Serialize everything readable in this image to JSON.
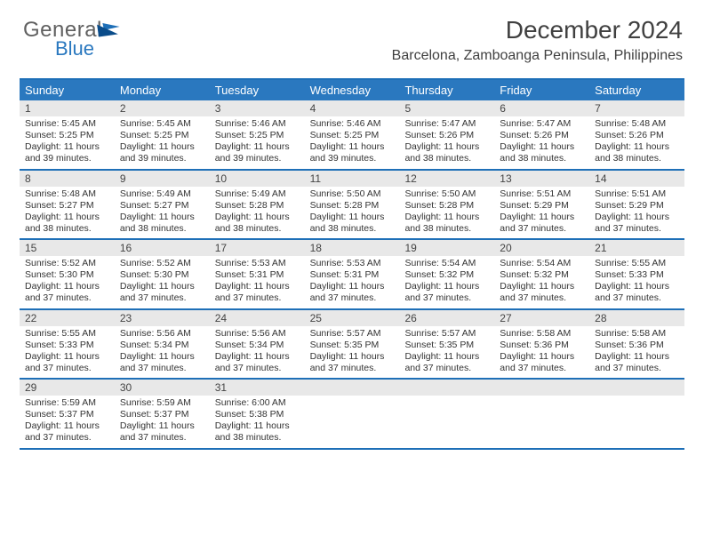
{
  "logo": {
    "text1": "General",
    "text2": "Blue"
  },
  "title": "December 2024",
  "subtitle": "Barcelona, Zamboanga Peninsula, Philippines",
  "colors": {
    "header_bg": "#2a78bf",
    "border": "#1e6fb7",
    "daynum_bg": "#e8e8e8",
    "text": "#333333"
  },
  "day_names": [
    "Sunday",
    "Monday",
    "Tuesday",
    "Wednesday",
    "Thursday",
    "Friday",
    "Saturday"
  ],
  "weeks": [
    [
      {
        "n": "1",
        "sr": "Sunrise: 5:45 AM",
        "ss": "Sunset: 5:25 PM",
        "dl": "Daylight: 11 hours and 39 minutes."
      },
      {
        "n": "2",
        "sr": "Sunrise: 5:45 AM",
        "ss": "Sunset: 5:25 PM",
        "dl": "Daylight: 11 hours and 39 minutes."
      },
      {
        "n": "3",
        "sr": "Sunrise: 5:46 AM",
        "ss": "Sunset: 5:25 PM",
        "dl": "Daylight: 11 hours and 39 minutes."
      },
      {
        "n": "4",
        "sr": "Sunrise: 5:46 AM",
        "ss": "Sunset: 5:25 PM",
        "dl": "Daylight: 11 hours and 39 minutes."
      },
      {
        "n": "5",
        "sr": "Sunrise: 5:47 AM",
        "ss": "Sunset: 5:26 PM",
        "dl": "Daylight: 11 hours and 38 minutes."
      },
      {
        "n": "6",
        "sr": "Sunrise: 5:47 AM",
        "ss": "Sunset: 5:26 PM",
        "dl": "Daylight: 11 hours and 38 minutes."
      },
      {
        "n": "7",
        "sr": "Sunrise: 5:48 AM",
        "ss": "Sunset: 5:26 PM",
        "dl": "Daylight: 11 hours and 38 minutes."
      }
    ],
    [
      {
        "n": "8",
        "sr": "Sunrise: 5:48 AM",
        "ss": "Sunset: 5:27 PM",
        "dl": "Daylight: 11 hours and 38 minutes."
      },
      {
        "n": "9",
        "sr": "Sunrise: 5:49 AM",
        "ss": "Sunset: 5:27 PM",
        "dl": "Daylight: 11 hours and 38 minutes."
      },
      {
        "n": "10",
        "sr": "Sunrise: 5:49 AM",
        "ss": "Sunset: 5:28 PM",
        "dl": "Daylight: 11 hours and 38 minutes."
      },
      {
        "n": "11",
        "sr": "Sunrise: 5:50 AM",
        "ss": "Sunset: 5:28 PM",
        "dl": "Daylight: 11 hours and 38 minutes."
      },
      {
        "n": "12",
        "sr": "Sunrise: 5:50 AM",
        "ss": "Sunset: 5:28 PM",
        "dl": "Daylight: 11 hours and 38 minutes."
      },
      {
        "n": "13",
        "sr": "Sunrise: 5:51 AM",
        "ss": "Sunset: 5:29 PM",
        "dl": "Daylight: 11 hours and 37 minutes."
      },
      {
        "n": "14",
        "sr": "Sunrise: 5:51 AM",
        "ss": "Sunset: 5:29 PM",
        "dl": "Daylight: 11 hours and 37 minutes."
      }
    ],
    [
      {
        "n": "15",
        "sr": "Sunrise: 5:52 AM",
        "ss": "Sunset: 5:30 PM",
        "dl": "Daylight: 11 hours and 37 minutes."
      },
      {
        "n": "16",
        "sr": "Sunrise: 5:52 AM",
        "ss": "Sunset: 5:30 PM",
        "dl": "Daylight: 11 hours and 37 minutes."
      },
      {
        "n": "17",
        "sr": "Sunrise: 5:53 AM",
        "ss": "Sunset: 5:31 PM",
        "dl": "Daylight: 11 hours and 37 minutes."
      },
      {
        "n": "18",
        "sr": "Sunrise: 5:53 AM",
        "ss": "Sunset: 5:31 PM",
        "dl": "Daylight: 11 hours and 37 minutes."
      },
      {
        "n": "19",
        "sr": "Sunrise: 5:54 AM",
        "ss": "Sunset: 5:32 PM",
        "dl": "Daylight: 11 hours and 37 minutes."
      },
      {
        "n": "20",
        "sr": "Sunrise: 5:54 AM",
        "ss": "Sunset: 5:32 PM",
        "dl": "Daylight: 11 hours and 37 minutes."
      },
      {
        "n": "21",
        "sr": "Sunrise: 5:55 AM",
        "ss": "Sunset: 5:33 PM",
        "dl": "Daylight: 11 hours and 37 minutes."
      }
    ],
    [
      {
        "n": "22",
        "sr": "Sunrise: 5:55 AM",
        "ss": "Sunset: 5:33 PM",
        "dl": "Daylight: 11 hours and 37 minutes."
      },
      {
        "n": "23",
        "sr": "Sunrise: 5:56 AM",
        "ss": "Sunset: 5:34 PM",
        "dl": "Daylight: 11 hours and 37 minutes."
      },
      {
        "n": "24",
        "sr": "Sunrise: 5:56 AM",
        "ss": "Sunset: 5:34 PM",
        "dl": "Daylight: 11 hours and 37 minutes."
      },
      {
        "n": "25",
        "sr": "Sunrise: 5:57 AM",
        "ss": "Sunset: 5:35 PM",
        "dl": "Daylight: 11 hours and 37 minutes."
      },
      {
        "n": "26",
        "sr": "Sunrise: 5:57 AM",
        "ss": "Sunset: 5:35 PM",
        "dl": "Daylight: 11 hours and 37 minutes."
      },
      {
        "n": "27",
        "sr": "Sunrise: 5:58 AM",
        "ss": "Sunset: 5:36 PM",
        "dl": "Daylight: 11 hours and 37 minutes."
      },
      {
        "n": "28",
        "sr": "Sunrise: 5:58 AM",
        "ss": "Sunset: 5:36 PM",
        "dl": "Daylight: 11 hours and 37 minutes."
      }
    ],
    [
      {
        "n": "29",
        "sr": "Sunrise: 5:59 AM",
        "ss": "Sunset: 5:37 PM",
        "dl": "Daylight: 11 hours and 37 minutes."
      },
      {
        "n": "30",
        "sr": "Sunrise: 5:59 AM",
        "ss": "Sunset: 5:37 PM",
        "dl": "Daylight: 11 hours and 37 minutes."
      },
      {
        "n": "31",
        "sr": "Sunrise: 6:00 AM",
        "ss": "Sunset: 5:38 PM",
        "dl": "Daylight: 11 hours and 38 minutes."
      },
      null,
      null,
      null,
      null
    ]
  ]
}
